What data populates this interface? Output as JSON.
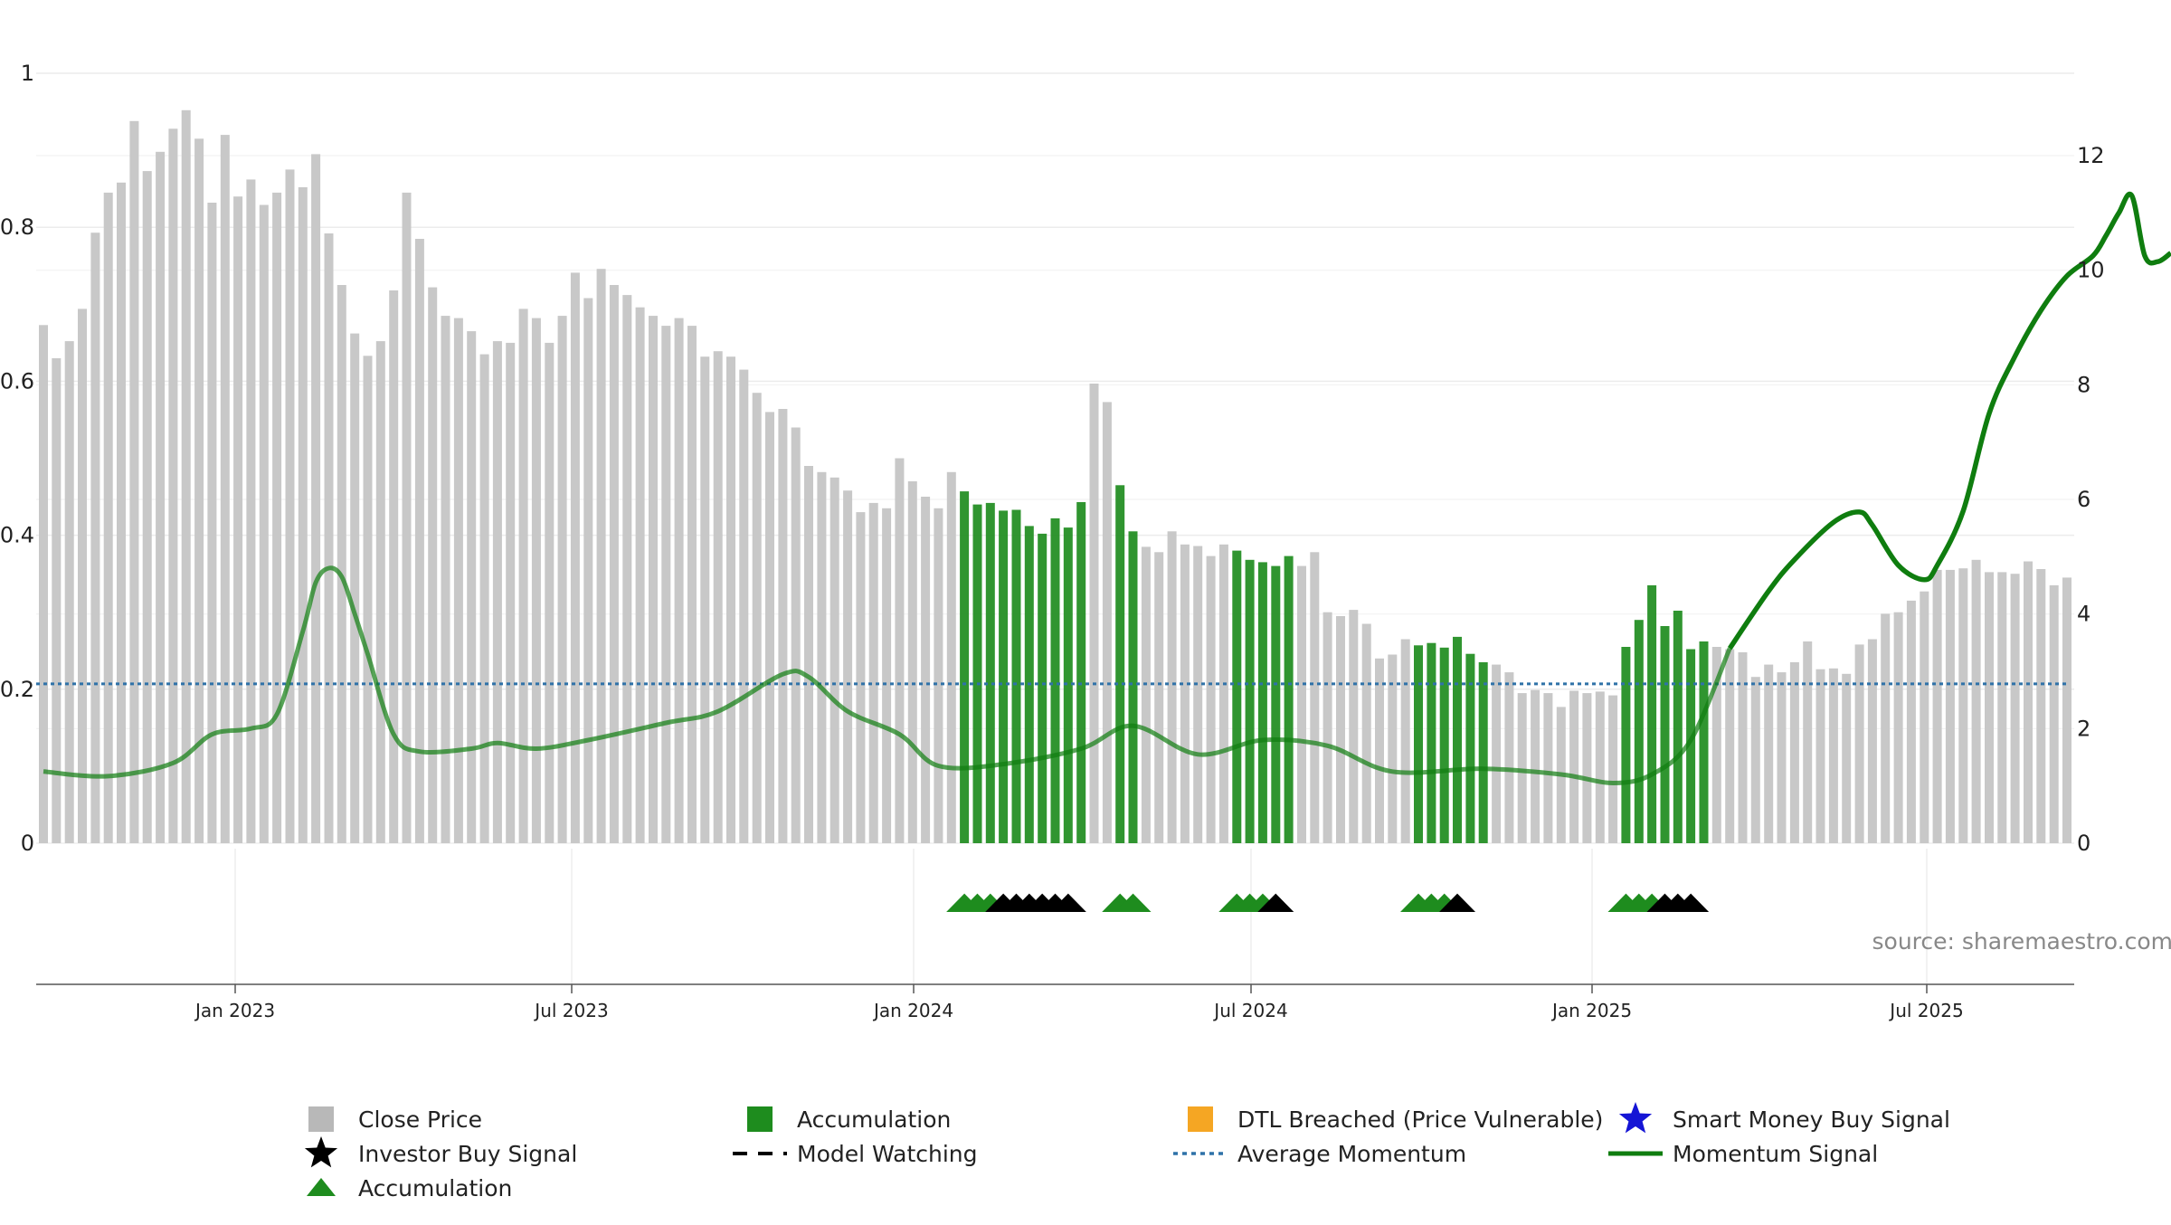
{
  "chart_data": {
    "type": "bar",
    "x_ticks": [
      "Jan 2023",
      "Jul 2023",
      "Jan 2024",
      "Jul 2024",
      "Jan 2025",
      "Jul 2025"
    ],
    "y_left": {
      "ylim": [
        0,
        1
      ],
      "ticks": [
        "0",
        "0.2",
        "0.4",
        "0.6",
        "0.8",
        "1"
      ]
    },
    "y_right": {
      "ylim": [
        0,
        13.4
      ],
      "ticks": [
        "0",
        "2",
        "4",
        "6",
        "8",
        "10",
        "12"
      ]
    },
    "grid": true,
    "legend_position": "bottom",
    "source_label": "source: sharemaestro.com",
    "colors": {
      "close_price": "#c8c8c8",
      "accumulation": "#1e8c1e",
      "momentum_signal": "#0f7d0f",
      "average_momentum": "#2f72a8",
      "dtl_breached": "#f5a623",
      "smart_money": "#1515d5",
      "investor_buy": "#000000"
    },
    "average_momentum_value": 2.78,
    "close_price_weekly": [
      0.673,
      0.63,
      0.652,
      0.694,
      0.793,
      0.845,
      0.858,
      0.938,
      0.873,
      0.898,
      0.928,
      0.952,
      0.915,
      0.832,
      0.92,
      0.84,
      0.862,
      0.829,
      0.845,
      0.875,
      0.852,
      0.895,
      0.792,
      0.725,
      0.662,
      0.633,
      0.652,
      0.718,
      0.845,
      0.785,
      0.722,
      0.685,
      0.682,
      0.665,
      0.635,
      0.652,
      0.65,
      0.694,
      0.682,
      0.65,
      0.685,
      0.741,
      0.708,
      0.746,
      0.725,
      0.712,
      0.696,
      0.685,
      0.672,
      0.682,
      0.672,
      0.632,
      0.639,
      0.632,
      0.615,
      0.585,
      0.56,
      0.564,
      0.54,
      0.49,
      0.482,
      0.475,
      0.458,
      0.43,
      0.442,
      0.435,
      0.5,
      0.47,
      0.45,
      0.435,
      0.482,
      0.457,
      0.44,
      0.442,
      0.432,
      0.433,
      0.412,
      0.402,
      0.422,
      0.41,
      0.443,
      0.597,
      0.573,
      0.465,
      0.405,
      0.385,
      0.378,
      0.405,
      0.388,
      0.386,
      0.373,
      0.388,
      0.38,
      0.368,
      0.365,
      0.36,
      0.373,
      0.36,
      0.378,
      0.3,
      0.295,
      0.303,
      0.285,
      0.24,
      0.245,
      0.265,
      0.257,
      0.26,
      0.254,
      0.268,
      0.246,
      0.235,
      0.232,
      0.222,
      0.195,
      0.199,
      0.195,
      0.177,
      0.198,
      0.195,
      0.197,
      0.192,
      0.255,
      0.29,
      0.335,
      0.282,
      0.302,
      0.252,
      0.262,
      0.255,
      0.252,
      0.248,
      0.216,
      0.232,
      0.222,
      0.235,
      0.262,
      0.226,
      0.227,
      0.22,
      0.258,
      0.265,
      0.298,
      0.3,
      0.315,
      0.327,
      0.355,
      0.355,
      0.357,
      0.368,
      0.352,
      0.352,
      0.35,
      0.366,
      0.356,
      0.335,
      0.345
    ],
    "accumulation_bar_weeks": [
      71,
      72,
      73,
      74,
      75,
      76,
      77,
      78,
      79,
      80,
      83,
      84,
      92,
      93,
      94,
      95,
      96,
      106,
      107,
      108,
      109,
      110,
      111,
      122,
      123,
      124,
      125,
      126,
      127,
      128
    ],
    "momentum_signal_points": [
      [
        0,
        1.25
      ],
      [
        5,
        1.17
      ],
      [
        10,
        1.4
      ],
      [
        13,
        1.9
      ],
      [
        16,
        2.0
      ],
      [
        18,
        2.25
      ],
      [
        20,
        3.7
      ],
      [
        21,
        4.55
      ],
      [
        22,
        4.8
      ],
      [
        23,
        4.65
      ],
      [
        24,
        4.0
      ],
      [
        25,
        3.3
      ],
      [
        27,
        1.9
      ],
      [
        29,
        1.6
      ],
      [
        33,
        1.65
      ],
      [
        35,
        1.75
      ],
      [
        38,
        1.65
      ],
      [
        42,
        1.8
      ],
      [
        48,
        2.1
      ],
      [
        52,
        2.3
      ],
      [
        57,
        2.95
      ],
      [
        59,
        2.9
      ],
      [
        62,
        2.3
      ],
      [
        66,
        1.9
      ],
      [
        69,
        1.35
      ],
      [
        74,
        1.38
      ],
      [
        80,
        1.65
      ],
      [
        84,
        2.05
      ],
      [
        89,
        1.55
      ],
      [
        94,
        1.8
      ],
      [
        99,
        1.7
      ],
      [
        104,
        1.25
      ],
      [
        111,
        1.3
      ],
      [
        117,
        1.2
      ],
      [
        121,
        1.05
      ],
      [
        124,
        1.2
      ],
      [
        127,
        1.8
      ],
      [
        130,
        3.4
      ],
      [
        133,
        4.4
      ],
      [
        135,
        4.95
      ],
      [
        138,
        5.6
      ],
      [
        140,
        5.78
      ],
      [
        141,
        5.55
      ],
      [
        143,
        4.85
      ],
      [
        145,
        4.6
      ],
      [
        146,
        4.85
      ],
      [
        148,
        5.8
      ],
      [
        150,
        7.5
      ],
      [
        152,
        8.5
      ],
      [
        154,
        9.3
      ],
      [
        156,
        9.9
      ],
      [
        158,
        10.25
      ],
      [
        159,
        10.6
      ],
      [
        160,
        11.0
      ],
      [
        161,
        11.3
      ],
      [
        162,
        10.25
      ],
      [
        163,
        10.15
      ],
      [
        164,
        10.3
      ]
    ],
    "accumulation_markers_weeks": [
      71,
      72,
      73,
      83,
      84,
      92,
      93,
      94,
      106,
      107,
      108,
      122,
      123,
      124
    ],
    "investor_buy_markers_weeks": [
      74,
      75,
      76,
      77,
      78,
      79,
      95,
      109,
      125,
      126,
      127
    ],
    "legend": [
      {
        "label": "Close Price",
        "icon": "square",
        "color": "#b8b8b8"
      },
      {
        "label": "Accumulation",
        "icon": "square",
        "color": "#1e8c1e"
      },
      {
        "label": "DTL Breached (Price Vulnerable)",
        "icon": "square",
        "color": "#f5a623"
      },
      {
        "label": "Smart Money Buy Signal",
        "icon": "star",
        "color": "#1515d5"
      },
      {
        "label": "Investor Buy Signal",
        "icon": "star",
        "color": "#000000"
      },
      {
        "label": "Model Watching",
        "icon": "dash",
        "color": "#000000"
      },
      {
        "label": "Average Momentum",
        "icon": "dotted",
        "color": "#2f72a8"
      },
      {
        "label": "Momentum Signal",
        "icon": "line",
        "color": "#0f7d0f"
      },
      {
        "label": "Accumulation",
        "icon": "triangle",
        "color": "#1e8c1e"
      }
    ]
  }
}
